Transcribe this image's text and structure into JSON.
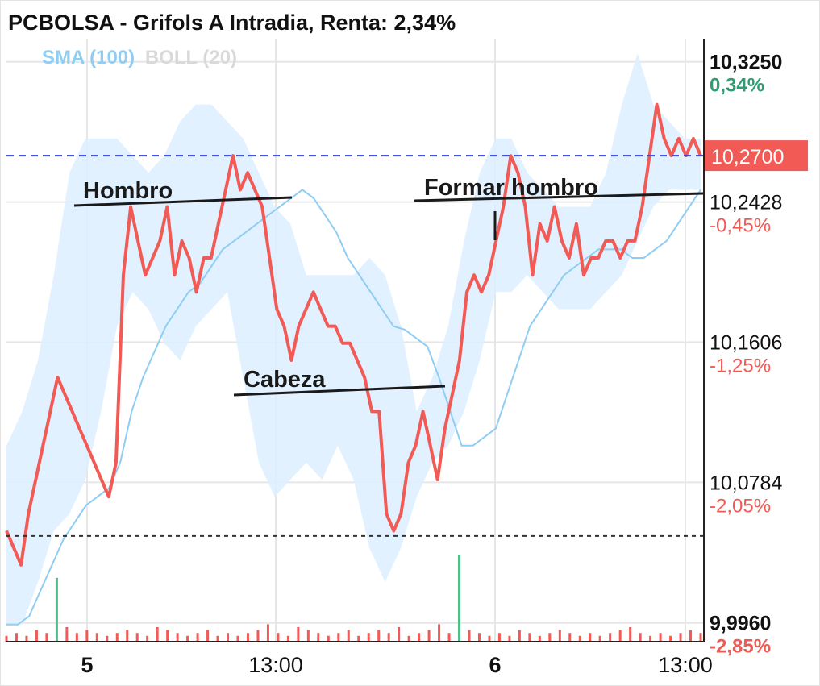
{
  "header": {
    "title": "PCBOLSA - Grifols A Intradia, Renta: 2,34%",
    "indicators": {
      "sma": "SMA (100)",
      "boll": "BOLL (20)"
    }
  },
  "colors": {
    "price_line": "#f25a56",
    "price_up_line": "#2e9e72",
    "sma_line": "#8fcdf2",
    "boll_band": "#dcefff",
    "current_price_line": "#2d3de0",
    "reference_line": "#333333",
    "volume_down": "#f25a56",
    "volume_up": "#4dbf84",
    "positive": "#2e9e72",
    "negative": "#f25a56"
  },
  "chart_data": {
    "type": "line",
    "title": "PCBOLSA - Grifols A Intradia, Renta: 2,34%",
    "x_ticks": [
      "5",
      "13:00",
      "6",
      "13:00"
    ],
    "ylim": [
      9.985,
      10.34
    ],
    "y_ticks": [
      {
        "price": "10,3250",
        "value": 10.325,
        "change": "0,34%",
        "sign": "positive"
      },
      {
        "price": "10,2428",
        "value": 10.2428,
        "change": "-0,45%",
        "sign": "negative"
      },
      {
        "price": "10,1606",
        "value": 10.1606,
        "change": "-1,25%",
        "sign": "negative"
      },
      {
        "price": "10,0784",
        "value": 10.0784,
        "change": "-2,05%",
        "sign": "negative"
      },
      {
        "price": "9,9960",
        "value": 9.996,
        "change": "-2,85%",
        "sign": "negative"
      }
    ],
    "current_price": {
      "label": "10,2700",
      "value": 10.27
    },
    "reference_price": 10.047,
    "price": [
      10.05,
      10.04,
      10.03,
      10.06,
      10.08,
      10.1,
      10.12,
      10.14,
      10.13,
      10.12,
      10.11,
      10.1,
      10.09,
      10.08,
      10.07,
      10.09,
      10.2,
      10.24,
      10.22,
      10.2,
      10.21,
      10.22,
      10.24,
      10.2,
      10.22,
      10.21,
      10.19,
      10.21,
      10.21,
      10.23,
      10.25,
      10.27,
      10.25,
      10.26,
      10.25,
      10.24,
      10.21,
      10.18,
      10.17,
      10.15,
      10.17,
      10.18,
      10.19,
      10.18,
      10.17,
      10.17,
      10.16,
      10.16,
      10.15,
      10.14,
      10.12,
      10.12,
      10.06,
      10.05,
      10.06,
      10.09,
      10.1,
      10.12,
      10.1,
      10.08,
      10.11,
      10.13,
      10.15,
      10.19,
      10.2,
      10.19,
      10.2,
      10.22,
      10.24,
      10.27,
      10.26,
      10.24,
      10.2,
      10.23,
      10.22,
      10.24,
      10.22,
      10.21,
      10.23,
      10.2,
      10.21,
      10.21,
      10.22,
      10.22,
      10.21,
      10.22,
      10.22,
      10.24,
      10.27,
      10.3,
      10.28,
      10.27,
      10.28,
      10.27,
      10.28,
      10.27
    ],
    "sma": [
      9.995,
      9.995,
      10,
      10.015,
      10.03,
      10.045,
      10.055,
      10.065,
      10.07,
      10.075,
      10.09,
      10.12,
      10.14,
      10.155,
      10.17,
      10.18,
      10.19,
      10.195,
      10.205,
      10.215,
      10.22,
      10.225,
      10.23,
      10.235,
      10.24,
      10.245,
      10.25,
      10.245,
      10.235,
      10.225,
      10.21,
      10.2,
      10.19,
      10.18,
      10.17,
      10.168,
      10.163,
      10.158,
      10.14,
      10.12,
      10.1,
      10.1,
      10.105,
      10.11,
      10.13,
      10.15,
      10.17,
      10.18,
      10.19,
      10.2,
      10.205,
      10.21,
      10.215,
      10.215,
      10.215,
      10.21,
      10.21,
      10.215,
      10.22,
      10.23,
      10.24,
      10.25
    ],
    "boll_upper": [
      10.1,
      10.12,
      10.15,
      10.2,
      10.26,
      10.28,
      10.28,
      10.28,
      10.27,
      10.26,
      10.27,
      10.29,
      10.3,
      10.3,
      10.29,
      10.28,
      10.26,
      10.24,
      10.23,
      10.2,
      10.2,
      10.2,
      10.2,
      10.21,
      10.2,
      10.17,
      10.12,
      10.14,
      10.17,
      10.22,
      10.26,
      10.28,
      10.28,
      10.26,
      10.25,
      10.24,
      10.24,
      10.24,
      10.26,
      10.3,
      10.33,
      10.3,
      10.29,
      10.28,
      10.28
    ],
    "boll_lower": [
      9.995,
      9.995,
      10.02,
      10.05,
      10.06,
      10.08,
      10.12,
      10.17,
      10.19,
      10.18,
      10.16,
      10.15,
      10.17,
      10.18,
      10.19,
      10.14,
      10.09,
      10.07,
      10.08,
      10.09,
      10.08,
      10.1,
      10.08,
      10.04,
      10.02,
      10.04,
      10.07,
      10.09,
      10.1,
      10.12,
      10.15,
      10.19,
      10.19,
      10.2,
      10.19,
      10.18,
      10.18,
      10.18,
      10.19,
      10.2,
      10.22,
      10.24,
      10.25,
      10.25,
      10.25
    ],
    "volume": [
      2,
      3,
      2,
      4,
      3,
      22,
      5,
      3,
      4,
      3,
      2,
      3,
      4,
      3,
      2,
      5,
      4,
      3,
      2,
      3,
      4,
      2,
      3,
      2,
      3,
      4,
      6,
      3,
      2,
      5,
      4,
      3,
      2,
      3,
      4,
      2,
      3,
      4,
      3,
      5,
      2,
      3,
      4,
      6,
      3,
      30,
      4,
      3,
      2,
      3,
      2,
      4,
      3,
      2,
      3,
      4,
      3,
      2,
      3,
      2,
      3,
      4,
      5,
      3,
      2,
      3,
      2,
      3,
      4,
      3
    ],
    "volume_up_index": [
      5,
      45
    ],
    "annotations": [
      {
        "text": "Hombro"
      },
      {
        "text": "Cabeza"
      },
      {
        "text": "Formar hombro"
      }
    ],
    "grid": true
  }
}
